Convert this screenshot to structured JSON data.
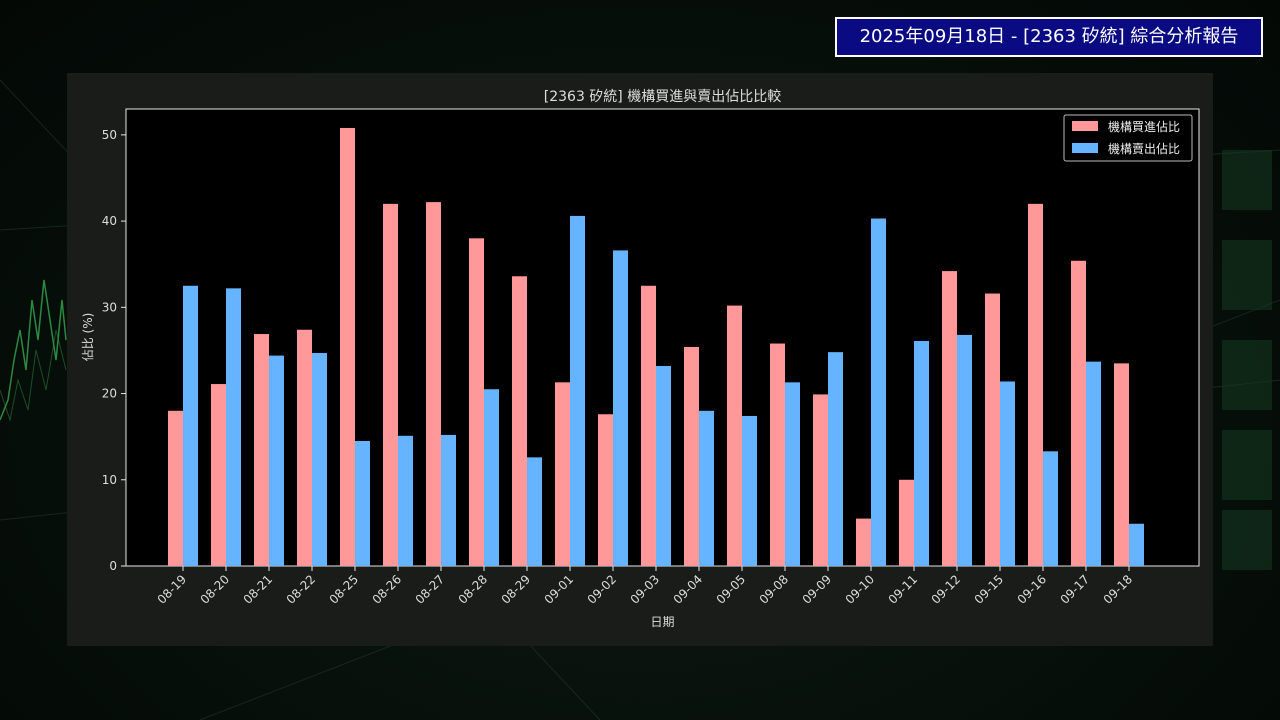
{
  "header": {
    "report_title": "2025年09月18日 - [2363 矽統] 綜合分析報告"
  },
  "chart_data": {
    "type": "bar",
    "title": "[2363 矽統] 機構買進與賣出佔比比較",
    "xlabel": "日期",
    "ylabel": "佔比 (%)",
    "ylim": [
      0,
      53
    ],
    "yticks": [
      0,
      10,
      20,
      30,
      40,
      50
    ],
    "grid": false,
    "legend_position": "top-right",
    "categories": [
      "08-19",
      "08-20",
      "08-21",
      "08-22",
      "08-25",
      "08-26",
      "08-27",
      "08-28",
      "08-29",
      "09-01",
      "09-02",
      "09-03",
      "09-04",
      "09-05",
      "09-08",
      "09-09",
      "09-10",
      "09-11",
      "09-12",
      "09-15",
      "09-16",
      "09-17",
      "09-18"
    ],
    "series": [
      {
        "name": "機構買進佔比",
        "color": "#ff9999",
        "values": [
          18.0,
          21.1,
          26.9,
          27.4,
          50.8,
          42.0,
          42.2,
          38.0,
          33.6,
          21.3,
          17.6,
          32.5,
          25.4,
          30.2,
          25.8,
          19.9,
          5.5,
          10.0,
          34.2,
          31.6,
          42.0,
          35.4,
          23.5
        ]
      },
      {
        "name": "機構賣出佔比",
        "color": "#66b3ff",
        "values": [
          32.5,
          32.2,
          24.4,
          24.7,
          14.5,
          15.1,
          15.2,
          20.5,
          12.6,
          40.6,
          36.6,
          23.2,
          18.0,
          17.4,
          21.3,
          24.8,
          40.3,
          26.1,
          26.8,
          21.4,
          13.3,
          23.7,
          4.9
        ]
      }
    ]
  }
}
